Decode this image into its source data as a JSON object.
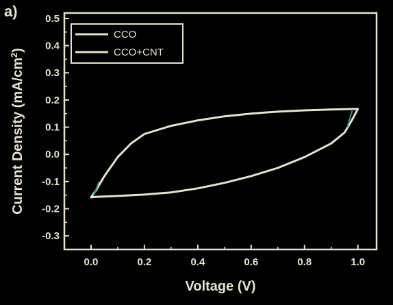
{
  "panel_label": "a)",
  "colors": {
    "background": "#000000",
    "foreground": "#e9e2cc",
    "cco_curve": "#e9e2cc",
    "cco_cnt_curve": "#2f8f7a"
  },
  "chart_data": {
    "type": "line",
    "title": "",
    "xlabel": "Voltage (V)",
    "ylabel_main": "Current Density (mA/cm",
    "ylabel_sup": "2",
    "ylabel_end": ")",
    "xlim": [
      -0.1,
      1.07
    ],
    "ylim": [
      -0.35,
      0.52
    ],
    "x_ticks": [
      0.0,
      0.2,
      0.4,
      0.6,
      0.8,
      1.0
    ],
    "x_tick_labels": [
      "0.0",
      "0.2",
      "0.4",
      "0.6",
      "0.8",
      "1.0"
    ],
    "y_ticks": [
      -0.3,
      -0.2,
      -0.1,
      0.0,
      0.1,
      0.2,
      0.3,
      0.4,
      0.5
    ],
    "y_tick_labels": [
      "-0.3",
      "-0.2",
      "-0.1",
      "0.0",
      "0.1",
      "0.2",
      "0.3",
      "0.4",
      "0.5"
    ],
    "legend_position": "top-left",
    "series": [
      {
        "name": "CCO",
        "x": [
          0.0,
          0.02,
          0.05,
          0.1,
          0.15,
          0.2,
          0.3,
          0.4,
          0.5,
          0.6,
          0.7,
          0.8,
          0.9,
          0.95,
          0.98,
          1.0,
          0.98,
          0.95,
          0.9,
          0.8,
          0.7,
          0.6,
          0.5,
          0.4,
          0.3,
          0.2,
          0.1,
          0.05,
          0.02,
          0.0
        ],
        "y": [
          -0.158,
          -0.13,
          -0.08,
          -0.01,
          0.04,
          0.075,
          0.105,
          0.125,
          0.14,
          0.15,
          0.157,
          0.162,
          0.165,
          0.166,
          0.167,
          0.167,
          0.13,
          0.08,
          0.04,
          -0.01,
          -0.05,
          -0.08,
          -0.105,
          -0.125,
          -0.14,
          -0.148,
          -0.153,
          -0.155,
          -0.156,
          -0.158
        ]
      },
      {
        "name": "CCO+CNT",
        "x": [
          0.01,
          0.02,
          0.03,
          0.96,
          0.97,
          0.98
        ],
        "y": [
          -0.15,
          -0.12,
          -0.1,
          0.1,
          0.12,
          0.165
        ]
      }
    ]
  }
}
